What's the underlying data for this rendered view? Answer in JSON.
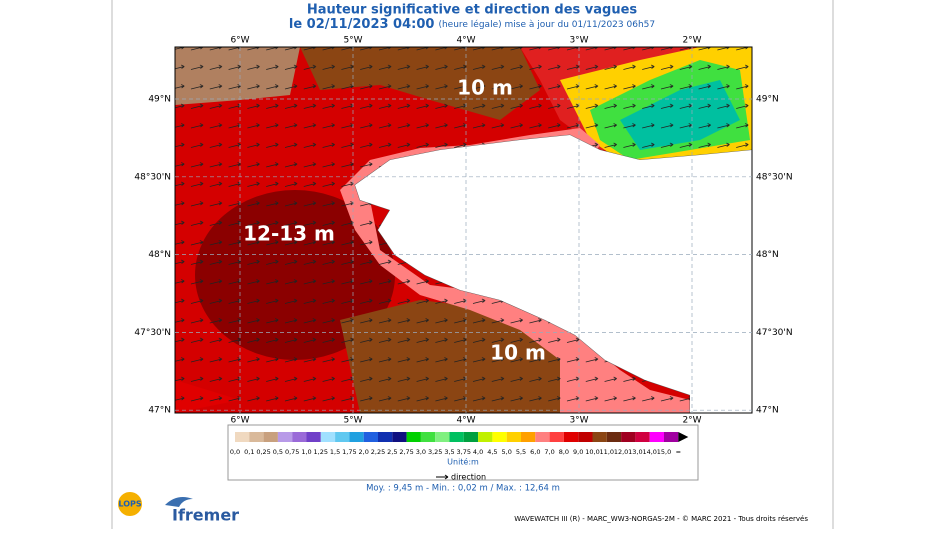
{
  "header": {
    "title": "Hauteur significative et direction des vagues",
    "date": "le 02/11/2023 04:00",
    "update": "(heure légale) mise à jour du 01/11/2023 06h57"
  },
  "map": {
    "lon_labels": [
      "6°W",
      "5°W",
      "4°W",
      "3°W",
      "2°W"
    ],
    "lat_labels": [
      "49°N",
      "48°30'N",
      "48°N",
      "47°30'N",
      "47°N"
    ],
    "annotations": [
      "10 m",
      "12-13 m",
      "10 m"
    ]
  },
  "legend": {
    "labels": [
      "0,0",
      "0,1",
      "0,25",
      "0,5",
      "0,75",
      "1,0",
      "1,25",
      "1,5",
      "1,75",
      "2,0",
      "2,25",
      "2,5",
      "2,75",
      "3,0",
      "3,25",
      "3,5",
      "3,75",
      "4,0",
      "4,5",
      "5,0",
      "5,5",
      "6,0",
      "7,0",
      "8,0",
      "9,0",
      "10,0",
      "11,0",
      "12,0",
      "13,0",
      "14,0",
      "15,0",
      "="
    ],
    "colors": [
      "#f0d9c0",
      "#d9b99a",
      "#c8a07e",
      "#b89ae8",
      "#9a6ad8",
      "#7040c8",
      "#a0e0ff",
      "#60c8f0",
      "#20a0e0",
      "#2060e0",
      "#1030b0",
      "#101080",
      "#00d000",
      "#40e040",
      "#80f080",
      "#00c060",
      "#00a040",
      "#c0f000",
      "#ffff00",
      "#ffd000",
      "#ffa000",
      "#ff8080",
      "#ff4040",
      "#e00000",
      "#c00000",
      "#8b4513",
      "#6b2b10",
      "#a00020",
      "#d00040",
      "#ff00ff",
      "#a000a0"
    ],
    "unit": "Unité:m",
    "direction": "direction",
    "stats": "Moy. : 9,45 m  -  Min. : 0,02 m / Max. : 12,64 m"
  },
  "footer": {
    "logo1": "LOPS",
    "logo2": "Ifremer",
    "credits": "WAVEWATCH III (R) - MARC_WW3-NORGAS-2M - © MARC 2021 - Tous droits réservés"
  }
}
